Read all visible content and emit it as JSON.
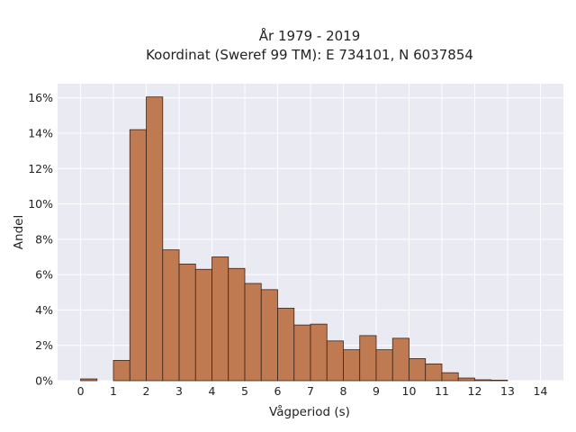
{
  "chart_data": {
    "type": "bar",
    "title_lines": [
      "År 1979 - 2019",
      "Koordinat (Sweref 99 TM): E 734101, N 6037854"
    ],
    "xlabel": "Vågperiod (s)",
    "ylabel": "Andel",
    "xlim": [
      -0.7,
      14.7
    ],
    "ylim": [
      0,
      16.8
    ],
    "x_ticks": [
      0,
      1,
      2,
      3,
      4,
      5,
      6,
      7,
      8,
      9,
      10,
      11,
      12,
      13,
      14
    ],
    "y_ticks": [
      0,
      2,
      4,
      6,
      8,
      10,
      12,
      14,
      16
    ],
    "y_tick_suffix": "%",
    "grid": true,
    "bin_width": 0.5,
    "bins_start": [
      0,
      1,
      1.5,
      2,
      2.5,
      3,
      3.5,
      4,
      4.5,
      5,
      5.5,
      6,
      6.5,
      7,
      7.5,
      8,
      8.5,
      9,
      9.5,
      10,
      10.5,
      11,
      11.5,
      12,
      12.5
    ],
    "values": [
      0.1,
      1.15,
      14.2,
      16.05,
      7.4,
      6.6,
      6.3,
      7.0,
      6.35,
      5.5,
      5.15,
      4.1,
      3.15,
      3.2,
      2.25,
      1.75,
      2.55,
      1.75,
      2.4,
      1.25,
      0.95,
      0.45,
      0.15,
      0.05,
      0.03
    ],
    "colors": {
      "bar_fill": "#c07a52",
      "bar_edge": "#3a2418",
      "plot_bg": "#eaeaf2",
      "grid": "#ffffff"
    }
  }
}
